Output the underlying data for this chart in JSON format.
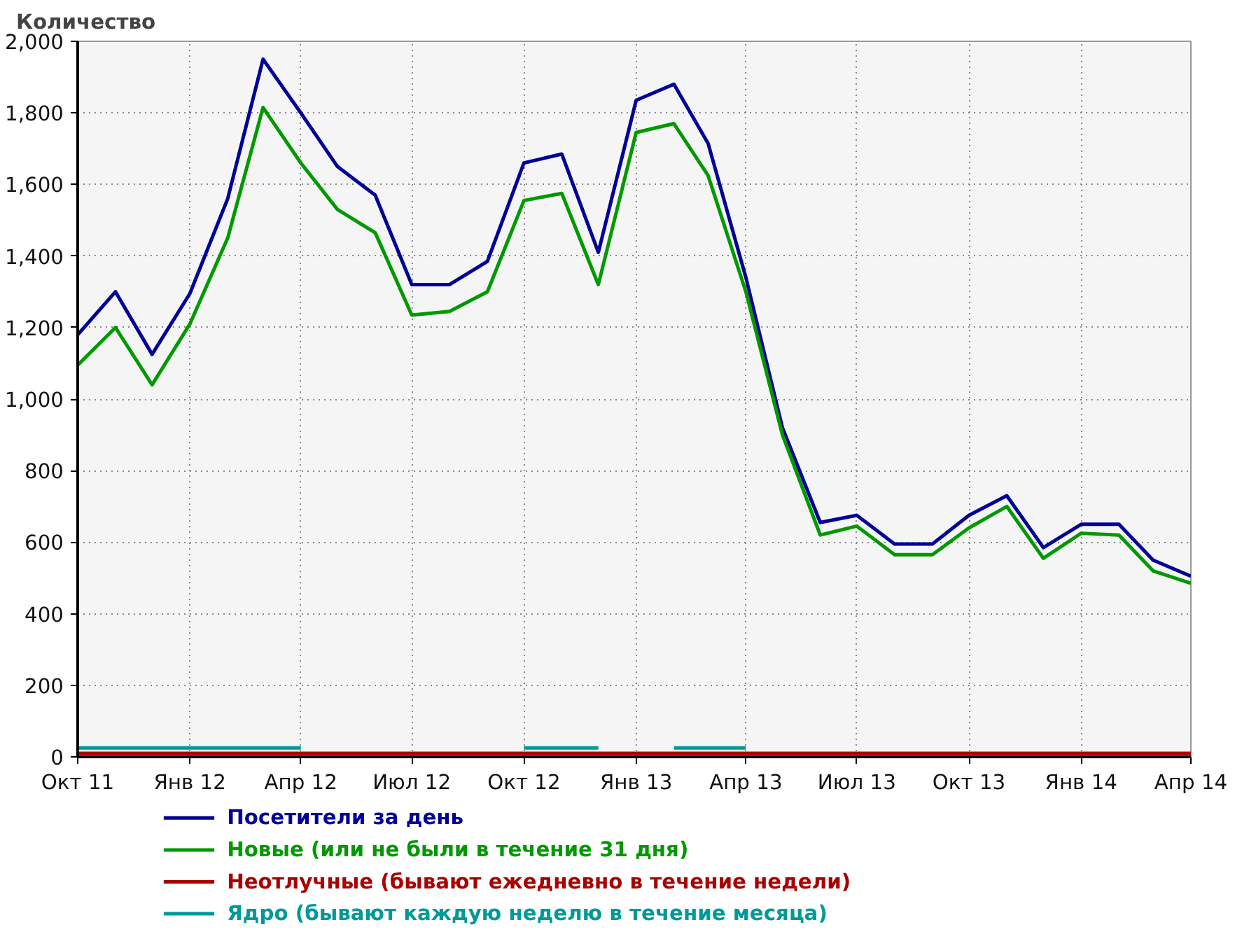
{
  "chart_data": {
    "type": "line",
    "ylabel": "Количество",
    "x": [
      "2011-10",
      "2011-11",
      "2011-12",
      "2012-01",
      "2012-02",
      "2012-03",
      "2012-04",
      "2012-05",
      "2012-06",
      "2012-07",
      "2012-08",
      "2012-09",
      "2012-10",
      "2012-11",
      "2012-12",
      "2013-01",
      "2013-02",
      "2013-03",
      "2013-04",
      "2013-05",
      "2013-06",
      "2013-07",
      "2013-08",
      "2013-09",
      "2013-10",
      "2013-11",
      "2013-12",
      "2014-01",
      "2014-02",
      "2014-03",
      "2014-04"
    ],
    "series": [
      {
        "name": "Посетители за день",
        "color": "#000099",
        "values": [
          1180,
          1300,
          1125,
          1295,
          1560,
          1950,
          1800,
          1650,
          1570,
          1320,
          1320,
          1385,
          1660,
          1685,
          1410,
          1835,
          1880,
          1715,
          1340,
          920,
          655,
          675,
          595,
          595,
          675,
          730,
          585,
          650,
          650,
          550,
          505
        ]
      },
      {
        "name": "Новые (или не были в течение 31 дня)",
        "color": "#009900",
        "values": [
          1095,
          1200,
          1040,
          1210,
          1450,
          1815,
          1660,
          1530,
          1465,
          1235,
          1245,
          1300,
          1555,
          1575,
          1320,
          1745,
          1770,
          1625,
          1300,
          900,
          620,
          645,
          565,
          565,
          640,
          700,
          555,
          625,
          620,
          520,
          485
        ]
      },
      {
        "name": "Неотлучные (бывают ежедневно в течение недели)",
        "color": "#aa0000",
        "values": [
          10,
          10,
          10,
          10,
          10,
          10,
          10,
          10,
          10,
          10,
          10,
          10,
          10,
          10,
          10,
          10,
          10,
          10,
          10,
          10,
          10,
          10,
          10,
          10,
          10,
          10,
          10,
          10,
          10,
          10,
          10
        ]
      },
      {
        "name": "Ядро (бывают каждую неделю в течение месяца)",
        "color": "#009999",
        "values": [
          25,
          25,
          25,
          25,
          25,
          25,
          25,
          null,
          null,
          null,
          null,
          null,
          25,
          25,
          25,
          null,
          25,
          25,
          25,
          null,
          null,
          null,
          null,
          null,
          null,
          null,
          null,
          null,
          null,
          null,
          null
        ]
      }
    ],
    "xlim": [
      "2011-10",
      "2014-04"
    ],
    "xticks": [
      {
        "value": "2011-10",
        "label": "Окт 11"
      },
      {
        "value": "2012-01",
        "label": "Янв 12"
      },
      {
        "value": "2012-04",
        "label": "Апр 12"
      },
      {
        "value": "2012-07",
        "label": "Июл 12"
      },
      {
        "value": "2012-10",
        "label": "Окт 12"
      },
      {
        "value": "2013-01",
        "label": "Янв 13"
      },
      {
        "value": "2013-04",
        "label": "Апр 13"
      },
      {
        "value": "2013-07",
        "label": "Июл 13"
      },
      {
        "value": "2013-10",
        "label": "Окт 13"
      },
      {
        "value": "2014-01",
        "label": "Янв 14"
      },
      {
        "value": "2014-04",
        "label": "Апр 14"
      }
    ],
    "ylim": [
      0,
      2000
    ],
    "yticks": [
      0,
      200,
      400,
      600,
      800,
      {
        "value": 1000,
        "label": "1,000"
      },
      {
        "value": 1200,
        "label": "1,200"
      },
      {
        "value": 1400,
        "label": "1,400"
      },
      {
        "value": 1600,
        "label": "1,600"
      },
      {
        "value": 1800,
        "label": "1,800"
      },
      {
        "value": 2000,
        "label": "2,000"
      }
    ],
    "grid": true,
    "legend": "bottom",
    "marker": "none",
    "line_style": "solid"
  }
}
